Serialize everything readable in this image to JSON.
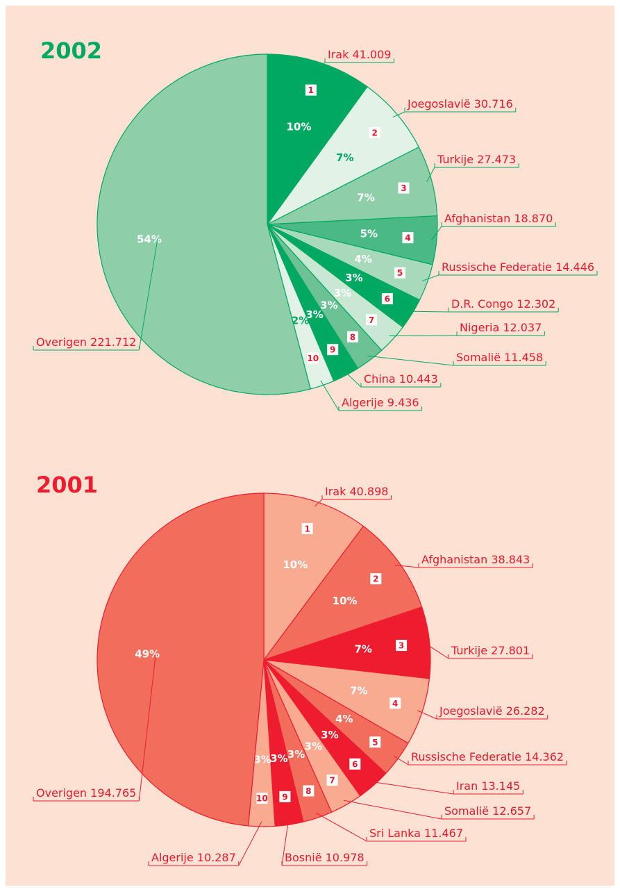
{
  "chart_data": [
    {
      "type": "pie",
      "title": "2002",
      "categories": [
        "Irak",
        "Joegoslavië",
        "Turkije",
        "Afghanistan",
        "Russische Federatie",
        "D.R. Congo",
        "Nigeria",
        "Somalië",
        "China",
        "Algerije",
        "Overigen"
      ],
      "values": [
        41009,
        30716,
        27473,
        18870,
        14446,
        12302,
        12037,
        11458,
        10443,
        9436,
        221712
      ],
      "value_labels": [
        "41.009",
        "30.716",
        "27.473",
        "18.870",
        "14.446",
        "12.302",
        "12.037",
        "11.458",
        "10.443",
        "9.436",
        "221.712"
      ],
      "percentages": [
        10,
        7,
        7,
        5,
        4,
        3,
        3,
        3,
        3,
        2,
        54
      ],
      "percentage_labels": [
        "10%",
        "7%",
        "7%",
        "5%",
        "4%",
        "3%",
        "3%",
        "3%",
        "3%",
        "2%",
        "54%"
      ],
      "ranks": [
        1,
        2,
        3,
        4,
        5,
        6,
        7,
        8,
        9,
        10,
        null
      ],
      "colors": [
        "#00a862",
        "#e2f2e6",
        "#8ecfaa",
        "#4bb985",
        "#a7d9bb",
        "#00a862",
        "#c9e8d3",
        "#6cc294",
        "#00a862",
        "#e2f2e6",
        "#8ecfaa"
      ],
      "stroke_color": "#00a862"
    },
    {
      "type": "pie",
      "title": "2001",
      "categories": [
        "Irak",
        "Afghanistan",
        "Turkije",
        "Joegoslavië",
        "Russische Federatie",
        "Iran",
        "Somalië",
        "Sri Lanka",
        "Bosnië",
        "Algerije",
        "Overigen"
      ],
      "values": [
        40898,
        38843,
        27801,
        26282,
        14362,
        13145,
        12657,
        11467,
        10978,
        10287,
        194765
      ],
      "value_labels": [
        "40.898",
        "38.843",
        "27.801",
        "26.282",
        "14.362",
        "13.145",
        "12.657",
        "11.467",
        "10.978",
        "10.287",
        "194.765"
      ],
      "percentages": [
        10,
        10,
        7,
        7,
        4,
        3,
        3,
        3,
        3,
        3,
        49
      ],
      "percentage_labels": [
        "10%",
        "10%",
        "7%",
        "7%",
        "4%",
        "3%",
        "3%",
        "3%",
        "3%",
        "3%",
        "49%"
      ],
      "ranks": [
        1,
        2,
        3,
        4,
        5,
        6,
        7,
        8,
        9,
        10,
        null
      ],
      "colors": [
        "#f9ab91",
        "#f26e5c",
        "#ed1c2e",
        "#f9ab91",
        "#f26e5c",
        "#ed1c2e",
        "#f9ab91",
        "#f26e5c",
        "#ed1c2e",
        "#f9ab91",
        "#f26e5c"
      ],
      "stroke_color": "#ed1c2e"
    }
  ]
}
